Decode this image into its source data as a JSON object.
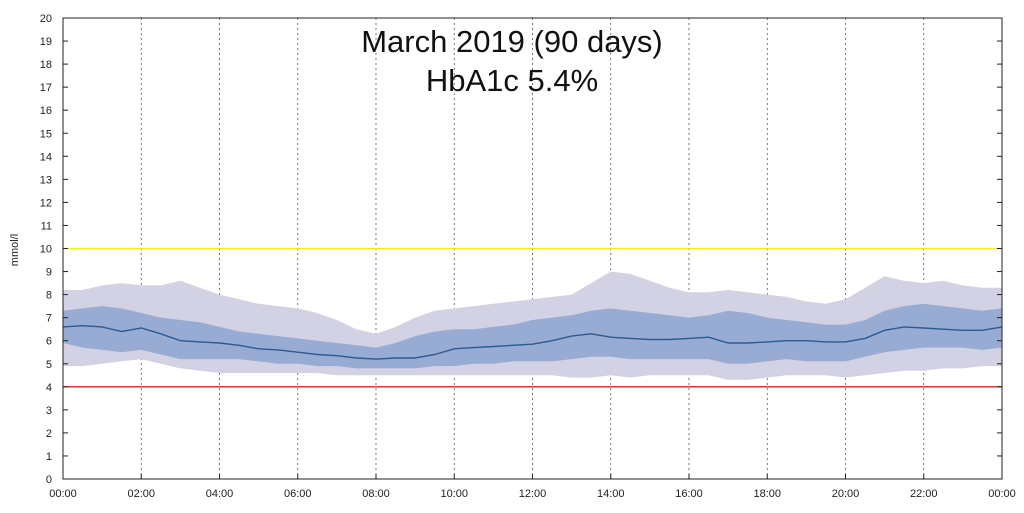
{
  "chart_data": {
    "type": "area",
    "title": "March 2019 (90 days)",
    "subtitle": "HbA1c 5.4%",
    "xlabel": "",
    "ylabel": "mmol/l",
    "xlim": [
      0,
      24
    ],
    "ylim": [
      0,
      20
    ],
    "x_ticks": [
      "00:00",
      "02:00",
      "04:00",
      "06:00",
      "08:00",
      "10:00",
      "12:00",
      "14:00",
      "16:00",
      "18:00",
      "20:00",
      "22:00",
      "00:00"
    ],
    "y_ticks": [
      0,
      1,
      2,
      3,
      4,
      5,
      6,
      7,
      8,
      9,
      10,
      11,
      12,
      13,
      14,
      15,
      16,
      17,
      18,
      19,
      20
    ],
    "grid": "vertical dotted at each hour tick",
    "thresholds": [
      {
        "value": 10,
        "color": "#f2f000"
      },
      {
        "value": 4,
        "color": "#e8201c"
      }
    ],
    "x_hours": [
      0,
      0.5,
      1,
      1.5,
      2,
      2.5,
      3,
      3.5,
      4,
      4.5,
      5,
      5.5,
      6,
      6.5,
      7,
      7.5,
      8,
      8.5,
      9,
      9.5,
      10,
      10.5,
      11,
      11.5,
      12,
      12.5,
      13,
      13.5,
      14,
      14.5,
      15,
      15.5,
      16,
      16.5,
      17,
      17.5,
      18,
      18.5,
      19,
      19.5,
      20,
      20.5,
      21,
      21.5,
      22,
      22.5,
      23,
      23.5,
      24
    ],
    "series": [
      {
        "values": [
          4.9,
          4.9,
          5.0,
          5.1,
          5.2,
          5.0,
          4.8,
          4.7,
          4.6,
          4.6,
          4.6,
          4.6,
          4.6,
          4.6,
          4.5,
          4.5,
          4.5,
          4.5,
          4.5,
          4.5,
          4.5,
          4.5,
          4.5,
          4.5,
          4.5,
          4.5,
          4.4,
          4.4,
          4.5,
          4.4,
          4.5,
          4.5,
          4.5,
          4.5,
          4.3,
          4.3,
          4.4,
          4.5,
          4.5,
          4.5,
          4.4,
          4.5,
          4.6,
          4.7,
          4.7,
          4.8,
          4.8,
          4.9,
          4.9
        ]
      },
      {
        "values": [
          5.9,
          5.7,
          5.6,
          5.5,
          5.6,
          5.4,
          5.2,
          5.2,
          5.2,
          5.2,
          5.1,
          5.0,
          5.0,
          4.9,
          4.9,
          4.8,
          4.8,
          4.8,
          4.8,
          4.9,
          4.9,
          5.0,
          5.0,
          5.1,
          5.1,
          5.1,
          5.2,
          5.3,
          5.3,
          5.2,
          5.2,
          5.2,
          5.2,
          5.2,
          5.0,
          5.0,
          5.1,
          5.2,
          5.1,
          5.1,
          5.1,
          5.3,
          5.5,
          5.6,
          5.7,
          5.7,
          5.7,
          5.6,
          5.7
        ]
      },
      {
        "values": [
          6.6,
          6.65,
          6.6,
          6.4,
          6.55,
          6.3,
          6.0,
          5.95,
          5.9,
          5.8,
          5.65,
          5.6,
          5.5,
          5.4,
          5.35,
          5.25,
          5.2,
          5.25,
          5.25,
          5.4,
          5.65,
          5.7,
          5.75,
          5.8,
          5.85,
          6.0,
          6.2,
          6.3,
          6.15,
          6.1,
          6.05,
          6.05,
          6.1,
          6.15,
          5.9,
          5.9,
          5.95,
          6.0,
          6.0,
          5.95,
          5.95,
          6.1,
          6.45,
          6.6,
          6.55,
          6.5,
          6.45,
          6.45,
          6.6
        ]
      },
      {
        "values": [
          7.3,
          7.4,
          7.5,
          7.4,
          7.2,
          7.0,
          6.9,
          6.8,
          6.6,
          6.4,
          6.3,
          6.2,
          6.1,
          6.0,
          5.9,
          5.8,
          5.7,
          5.9,
          6.2,
          6.4,
          6.5,
          6.5,
          6.6,
          6.7,
          6.9,
          7.0,
          7.1,
          7.3,
          7.4,
          7.3,
          7.2,
          7.1,
          7.0,
          7.1,
          7.3,
          7.2,
          7.0,
          6.9,
          6.8,
          6.7,
          6.7,
          6.9,
          7.3,
          7.5,
          7.6,
          7.5,
          7.4,
          7.3,
          7.4
        ]
      },
      {
        "values": [
          8.2,
          8.2,
          8.4,
          8.5,
          8.4,
          8.4,
          8.6,
          8.3,
          8.0,
          7.8,
          7.6,
          7.5,
          7.4,
          7.2,
          6.9,
          6.5,
          6.3,
          6.6,
          7.0,
          7.3,
          7.4,
          7.5,
          7.6,
          7.7,
          7.8,
          7.9,
          8.0,
          8.5,
          9.0,
          8.9,
          8.6,
          8.3,
          8.1,
          8.1,
          8.2,
          8.1,
          8.0,
          7.9,
          7.7,
          7.6,
          7.8,
          8.3,
          8.8,
          8.6,
          8.5,
          8.6,
          8.4,
          8.3,
          8.3
        ]
      }
    ],
    "colors": {
      "outer_band": "#d3d2e4",
      "inner_band": "#98acd3",
      "median_line": "#2c5a94",
      "grid": "#555555"
    }
  }
}
